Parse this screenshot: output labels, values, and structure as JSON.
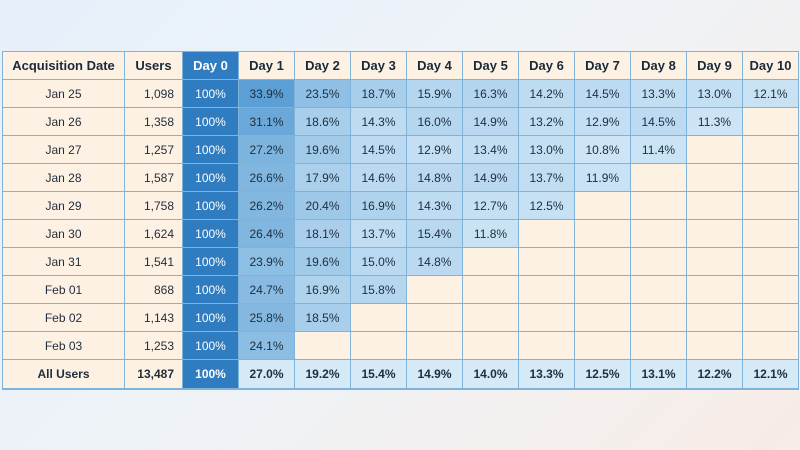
{
  "chart_data": {
    "type": "table",
    "title": "",
    "columns": [
      "Acquisition Date",
      "Users",
      "Day 0",
      "Day 1",
      "Day 2",
      "Day 3",
      "Day 4",
      "Day 5",
      "Day 6",
      "Day 7",
      "Day 8",
      "Day 9",
      "Day 10"
    ],
    "rows": [
      {
        "date": "Jan 25",
        "users": "1,098",
        "values": [
          "100%",
          "33.9%",
          "23.5%",
          "18.7%",
          "15.9%",
          "16.3%",
          "14.2%",
          "14.5%",
          "13.3%",
          "13.0%",
          "12.1%"
        ]
      },
      {
        "date": "Jan 26",
        "users": "1,358",
        "values": [
          "100%",
          "31.1%",
          "18.6%",
          "14.3%",
          "16.0%",
          "14.9%",
          "13.2%",
          "12.9%",
          "14.5%",
          "11.3%"
        ]
      },
      {
        "date": "Jan 27",
        "users": "1,257",
        "values": [
          "100%",
          "27.2%",
          "19.6%",
          "14.5%",
          "12.9%",
          "13.4%",
          "13.0%",
          "10.8%",
          "11.4%"
        ]
      },
      {
        "date": "Jan 28",
        "users": "1,587",
        "values": [
          "100%",
          "26.6%",
          "17.9%",
          "14.6%",
          "14.8%",
          "14.9%",
          "13.7%",
          "11.9%"
        ]
      },
      {
        "date": "Jan 29",
        "users": "1,758",
        "values": [
          "100%",
          "26.2%",
          "20.4%",
          "16.9%",
          "14.3%",
          "12.7%",
          "12.5%"
        ]
      },
      {
        "date": "Jan 30",
        "users": "1,624",
        "values": [
          "100%",
          "26.4%",
          "18.1%",
          "13.7%",
          "15.4%",
          "11.8%"
        ]
      },
      {
        "date": "Jan 31",
        "users": "1,541",
        "values": [
          "100%",
          "23.9%",
          "19.6%",
          "15.0%",
          "14.8%"
        ]
      },
      {
        "date": "Feb 01",
        "users": "868",
        "values": [
          "100%",
          "24.7%",
          "16.9%",
          "15.8%"
        ]
      },
      {
        "date": "Feb 02",
        "users": "1,143",
        "values": [
          "100%",
          "25.8%",
          "18.5%"
        ]
      },
      {
        "date": "Feb 03",
        "users": "1,253",
        "values": [
          "100%",
          "24.1%"
        ]
      }
    ],
    "total": {
      "date": "All Users",
      "users": "13,487",
      "values": [
        "100%",
        "27.0%",
        "19.2%",
        "15.4%",
        "14.9%",
        "14.0%",
        "13.3%",
        "12.5%",
        "13.1%",
        "12.2%",
        "12.1%"
      ]
    },
    "colors": {
      "header_bg": "#fdf1e3",
      "day0_bg": "#2f7cc0",
      "day0_header_bg": "#2f7cc0",
      "empty_bg": "#fdf1e3",
      "grid_line": "#7fb3d9",
      "scale_low": "#cde5f6",
      "scale_high": "#5b9fd4"
    }
  }
}
